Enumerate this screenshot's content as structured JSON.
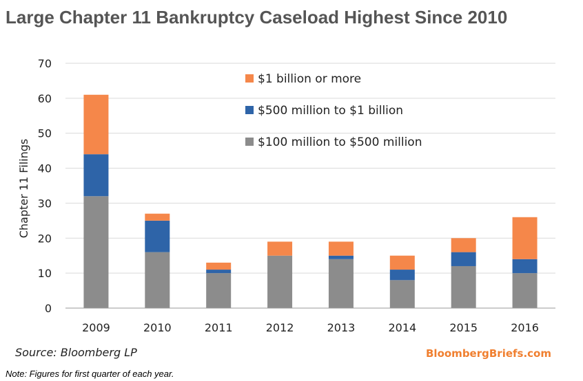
{
  "title": "Large Chapter 11 Bankruptcy Caseload Highest Since 2010",
  "source": "Source: Bloomberg LP",
  "brand": "BloombergBriefs.com",
  "note": "Note: Figures for first quarter of each year.",
  "chart_data": {
    "type": "bar",
    "stacked": true,
    "categories": [
      "2009",
      "2010",
      "2011",
      "2012",
      "2013",
      "2014",
      "2015",
      "2016"
    ],
    "series": [
      {
        "name": "$100 million to $500 million",
        "color": "#8c8c8c",
        "values": [
          32,
          16,
          10,
          15,
          14,
          8,
          12,
          10
        ]
      },
      {
        "name": "$500 million to $1 billion",
        "color": "#2e64a8",
        "values": [
          12,
          9,
          1,
          0,
          1,
          3,
          4,
          4
        ]
      },
      {
        "name": "$1 billion or more",
        "color": "#f5874a",
        "values": [
          17,
          2,
          2,
          4,
          4,
          4,
          4,
          12
        ]
      }
    ],
    "legend_order": [
      2,
      1,
      0
    ],
    "legend_position": "top-center",
    "ylabel": "Chapter 11 Filings",
    "xlabel": "",
    "ylim": [
      0,
      70
    ],
    "yticks": [
      0,
      10,
      20,
      30,
      40,
      50,
      60,
      70
    ],
    "grid": true
  }
}
